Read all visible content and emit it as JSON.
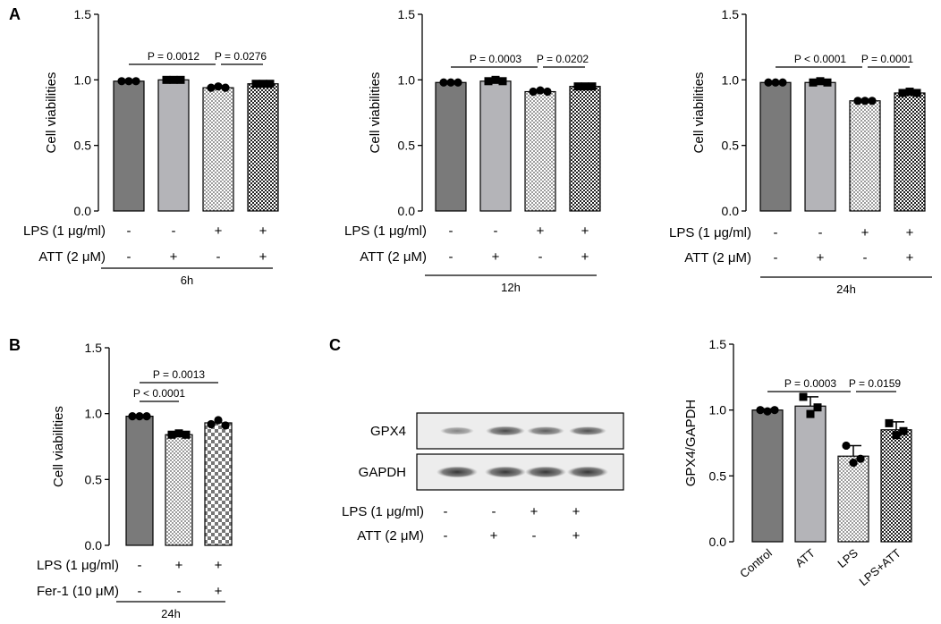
{
  "panel_labels": [
    "A",
    "B",
    "C"
  ],
  "chart_data": [
    {
      "type": "bar",
      "panel": "A",
      "ylabel": "Cell viabilities",
      "ylim": [
        0,
        1.5
      ],
      "yticks": [
        "0.0",
        "0.5",
        "1.0",
        "1.5"
      ],
      "values": [
        0.99,
        1.0,
        0.94,
        0.97
      ],
      "points": [
        [
          0.99,
          0.99,
          0.99
        ],
        [
          1.0,
          1.0,
          1.0
        ],
        [
          0.94,
          0.95,
          0.94
        ],
        [
          0.97,
          0.97,
          0.97
        ]
      ],
      "rows": [
        {
          "label": "LPS (1 μg/ml)",
          "signs": [
            "-",
            "-",
            "+",
            "+"
          ]
        },
        {
          "label": "ATT (2 μM)",
          "signs": [
            "-",
            "+",
            "-",
            "+"
          ]
        }
      ],
      "group": "6h",
      "pvalues": [
        {
          "from": 0,
          "to": 2,
          "label": "P = 0.0012"
        },
        {
          "from": 2,
          "to": 3,
          "label": "P = 0.0276"
        }
      ]
    },
    {
      "type": "bar",
      "panel": "A",
      "ylabel": "Cell viabilities",
      "ylim": [
        0,
        1.5
      ],
      "yticks": [
        "0.0",
        "0.5",
        "1.0",
        "1.5"
      ],
      "values": [
        0.98,
        0.99,
        0.91,
        0.95
      ],
      "points": [
        [
          0.98,
          0.98,
          0.98
        ],
        [
          0.99,
          1.0,
          0.99
        ],
        [
          0.91,
          0.92,
          0.91
        ],
        [
          0.95,
          0.95,
          0.95
        ]
      ],
      "rows": [
        {
          "label": "LPS (1 μg/ml)",
          "signs": [
            "-",
            "-",
            "+",
            "+"
          ]
        },
        {
          "label": "ATT (2 μM)",
          "signs": [
            "-",
            "+",
            "-",
            "+"
          ]
        }
      ],
      "group": "12h",
      "pvalues": [
        {
          "from": 0,
          "to": 2,
          "label": "P = 0.0003"
        },
        {
          "from": 2,
          "to": 3,
          "label": "P = 0.0202"
        }
      ]
    },
    {
      "type": "bar",
      "panel": "A",
      "ylabel": "Cell viabilities",
      "ylim": [
        0,
        1.5
      ],
      "yticks": [
        "0.0",
        "0.5",
        "1.0",
        "1.5"
      ],
      "values": [
        0.98,
        0.98,
        0.84,
        0.9
      ],
      "points": [
        [
          0.98,
          0.98,
          0.98
        ],
        [
          0.98,
          0.99,
          0.98
        ],
        [
          0.84,
          0.84,
          0.84
        ],
        [
          0.9,
          0.91,
          0.9
        ]
      ],
      "rows": [
        {
          "label": "LPS (1 μg/ml)",
          "signs": [
            "-",
            "-",
            "+",
            "+"
          ]
        },
        {
          "label": "ATT (2 μM)",
          "signs": [
            "-",
            "+",
            "-",
            "+"
          ]
        }
      ],
      "group": "24h",
      "pvalues": [
        {
          "from": 0,
          "to": 2,
          "label": "P < 0.0001"
        },
        {
          "from": 2,
          "to": 3,
          "label": "P = 0.0001"
        }
      ]
    },
    {
      "type": "bar",
      "panel": "B",
      "ylabel": "Cell viabilities",
      "ylim": [
        0,
        1.5
      ],
      "yticks": [
        "0.0",
        "0.5",
        "1.0",
        "1.5"
      ],
      "values": [
        0.98,
        0.84,
        0.93
      ],
      "points": [
        [
          0.98,
          0.98,
          0.98
        ],
        [
          0.84,
          0.85,
          0.84
        ],
        [
          0.92,
          0.95,
          0.91
        ]
      ],
      "rows": [
        {
          "label": "LPS (1 μg/ml)",
          "signs": [
            "-",
            "+",
            "+"
          ]
        },
        {
          "label": "Fer-1 (10 μM)",
          "signs": [
            "-",
            "-",
            "+"
          ]
        }
      ],
      "group": "24h",
      "pvalues": [
        {
          "from": 0,
          "to": 1,
          "label": "P < 0.0001"
        },
        {
          "from": 0,
          "to": 2,
          "label": "P = 0.0013"
        }
      ]
    },
    {
      "type": "bar",
      "panel": "C",
      "ylabel": "GPX4/GAPDH",
      "ylim": [
        0,
        1.5
      ],
      "yticks": [
        "0.0",
        "0.5",
        "1.0",
        "1.5"
      ],
      "categories": [
        "Control",
        "ATT",
        "LPS",
        "LPS+ATT"
      ],
      "values": [
        1.0,
        1.03,
        0.65,
        0.85
      ],
      "errors": [
        0.01,
        0.07,
        0.08,
        0.06
      ],
      "points": [
        [
          1.0,
          0.99,
          1.0
        ],
        [
          1.1,
          0.97,
          1.02
        ],
        [
          0.73,
          0.6,
          0.63
        ],
        [
          0.9,
          0.81,
          0.84
        ]
      ],
      "pvalues": [
        {
          "from": 0,
          "to": 2,
          "label": "P = 0.0003"
        },
        {
          "from": 2,
          "to": 3,
          "label": "P = 0.0159"
        }
      ]
    }
  ],
  "blot": {
    "bands": [
      "GPX4",
      "GAPDH"
    ],
    "rows": [
      {
        "label": "LPS (1 μg/ml)",
        "signs": [
          "-",
          "-",
          "+",
          "+"
        ]
      },
      {
        "label": "ATT (2 μM)",
        "signs": [
          "-",
          "+",
          "-",
          "+"
        ]
      }
    ]
  }
}
